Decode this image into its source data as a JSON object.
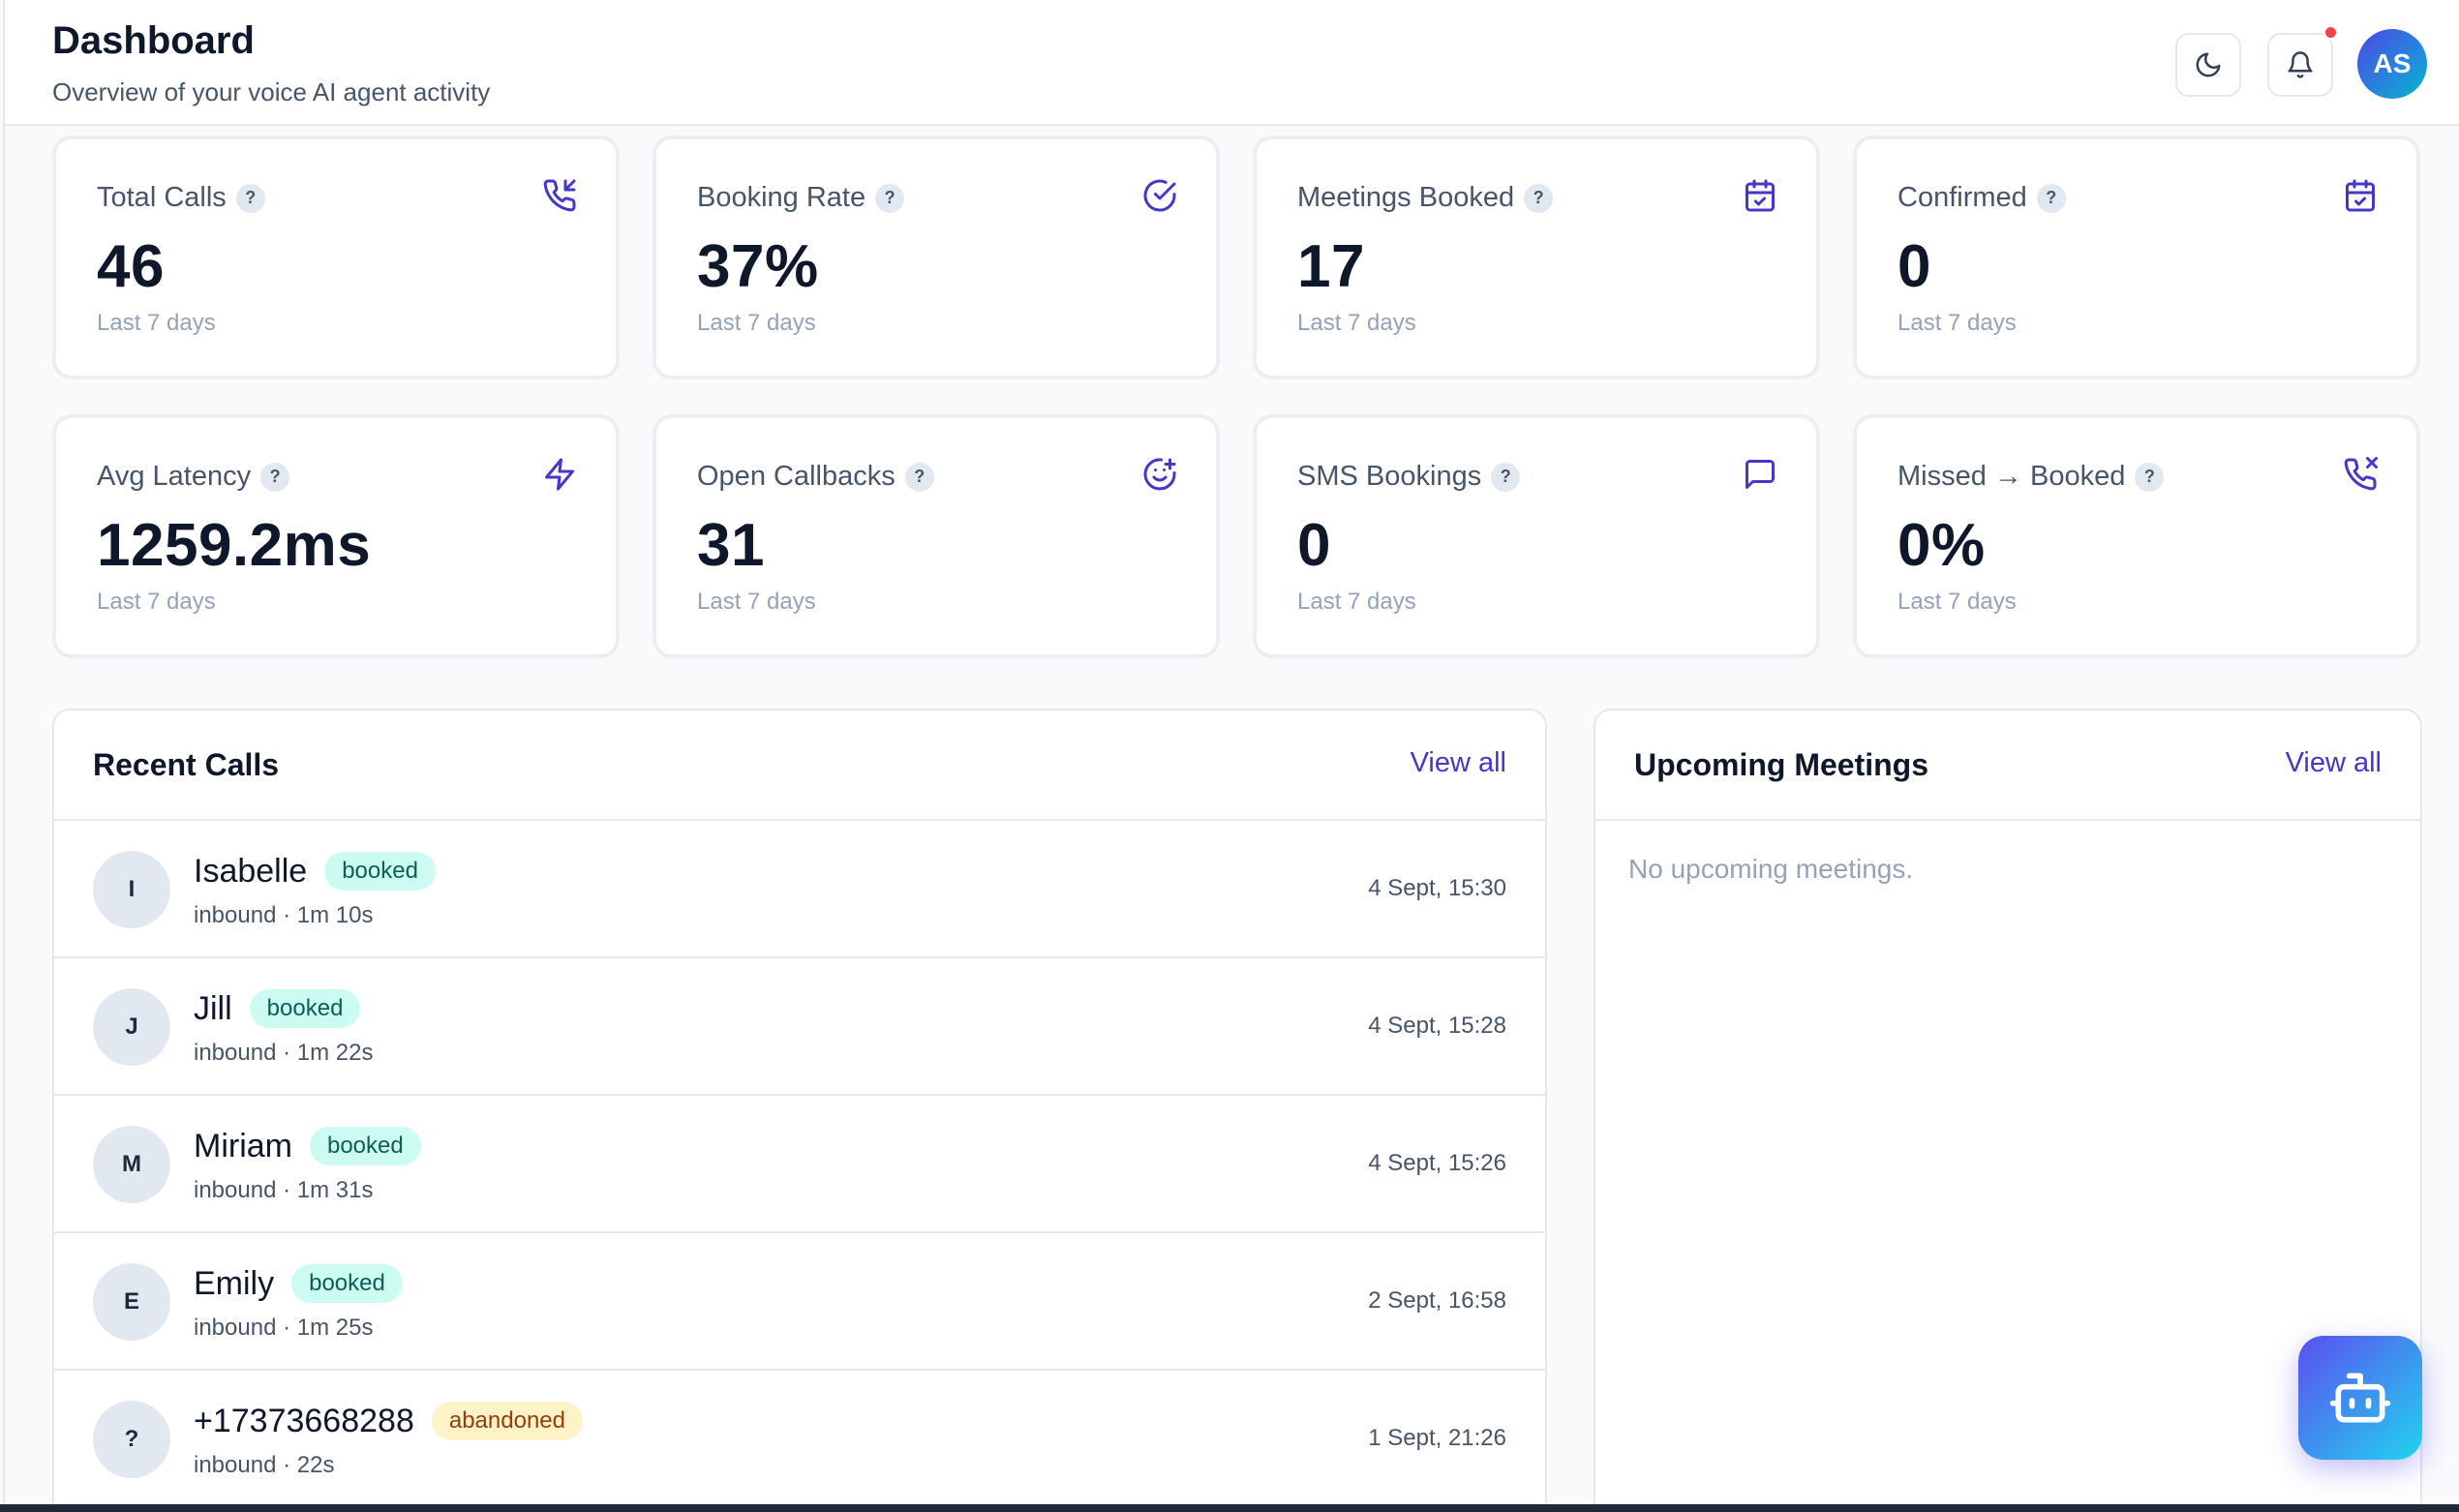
{
  "header": {
    "title": "Dashboard",
    "subtitle": "Overview of your voice AI agent activity",
    "theme_icon": "moon-icon",
    "notifications_icon": "bell-icon",
    "avatar_initials": "AS"
  },
  "stats": [
    {
      "label": "Total Calls",
      "value": "46",
      "note": "Last 7 days",
      "icon": "phone-incoming-icon"
    },
    {
      "label": "Booking Rate",
      "value": "37%",
      "note": "Last 7 days",
      "icon": "check-circle-icon"
    },
    {
      "label": "Meetings Booked",
      "value": "17",
      "note": "Last 7 days",
      "icon": "calendar-check-icon"
    },
    {
      "label": "Confirmed",
      "value": "0",
      "note": "Last 7 days",
      "icon": "calendar-check-icon"
    },
    {
      "label": "Avg Latency",
      "value": "1259.2ms",
      "note": "Last 7 days",
      "icon": "zap-icon"
    },
    {
      "label": "Open Callbacks",
      "value": "31",
      "note": "Last 7 days",
      "icon": "smile-plus-icon"
    },
    {
      "label": "SMS Bookings",
      "value": "0",
      "note": "Last 7 days",
      "icon": "message-square-icon"
    },
    {
      "label": "Missed → Booked",
      "value": "0%",
      "note": "Last 7 days",
      "icon": "phone-missed-icon"
    }
  ],
  "help_glyph": "?",
  "recent_calls": {
    "title": "Recent Calls",
    "view_all": "View all",
    "items": [
      {
        "initial": "I",
        "name": "Isabelle",
        "status": "booked",
        "meta": "inbound · 1m 10s",
        "time": "4 Sept, 15:30"
      },
      {
        "initial": "J",
        "name": "Jill",
        "status": "booked",
        "meta": "inbound · 1m 22s",
        "time": "4 Sept, 15:28"
      },
      {
        "initial": "M",
        "name": "Miriam",
        "status": "booked",
        "meta": "inbound · 1m 31s",
        "time": "4 Sept, 15:26"
      },
      {
        "initial": "E",
        "name": "Emily",
        "status": "booked",
        "meta": "inbound · 1m 25s",
        "time": "2 Sept, 16:58"
      },
      {
        "initial": "?",
        "name": "+17373668288",
        "status": "abandoned",
        "meta": "inbound · 22s",
        "time": "1 Sept, 21:26"
      }
    ]
  },
  "upcoming_meetings": {
    "title": "Upcoming Meetings",
    "view_all": "View all",
    "empty_text": "No upcoming meetings."
  },
  "assistant_button_icon": "bot-icon",
  "colors": {
    "accent": "#4338ca",
    "booked_bg": "#ccfbf1",
    "abandoned_bg": "#fef3c7",
    "notification_dot": "#ef4444"
  }
}
